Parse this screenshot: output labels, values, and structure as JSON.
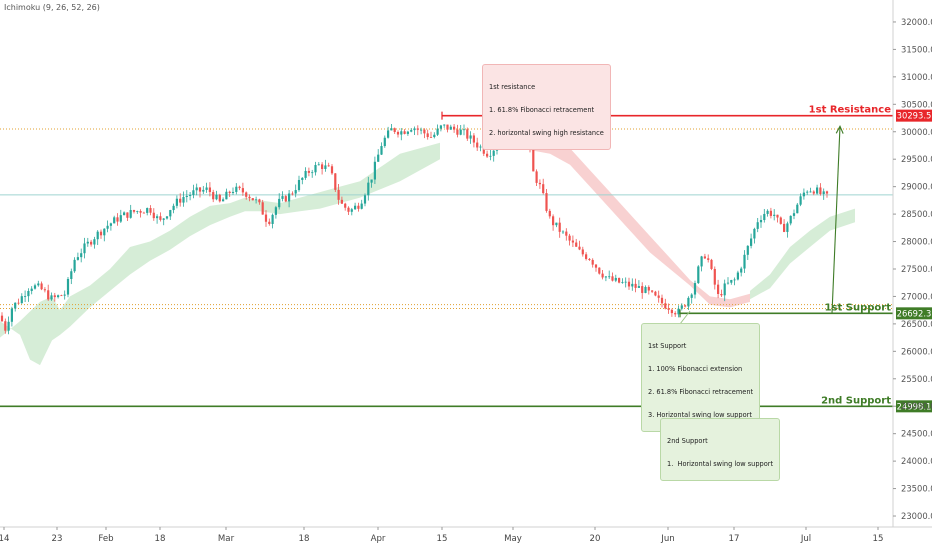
{
  "indicator": "Ichimoku (9, 26, 52, 26)",
  "chart_data": {
    "type": "candlestick",
    "ylim": [
      22800,
      32400
    ],
    "y_ticks": [
      23000,
      23500,
      24000,
      24500,
      25000,
      25500,
      26000,
      26500,
      27000,
      27500,
      28000,
      28500,
      29000,
      29500,
      30000,
      30500,
      31000,
      31500,
      32000
    ],
    "x_ticks": [
      "14",
      "23",
      "Feb",
      "18",
      "Mar",
      "18",
      "Apr",
      "15",
      "May",
      "20",
      "Jun",
      "17",
      "Jul",
      "15"
    ],
    "price_path": [
      [
        0,
        26650
      ],
      [
        5,
        26400
      ],
      [
        12,
        26800
      ],
      [
        20,
        26950
      ],
      [
        30,
        27200
      ],
      [
        40,
        27150
      ],
      [
        52,
        26950
      ],
      [
        65,
        27050
      ],
      [
        75,
        27700
      ],
      [
        85,
        27900
      ],
      [
        95,
        28100
      ],
      [
        108,
        28300
      ],
      [
        120,
        28450
      ],
      [
        135,
        28550
      ],
      [
        150,
        28600
      ],
      [
        160,
        28350
      ],
      [
        170,
        28600
      ],
      [
        182,
        28800
      ],
      [
        195,
        28900
      ],
      [
        208,
        28950
      ],
      [
        220,
        28700
      ],
      [
        232,
        28950
      ],
      [
        245,
        28900
      ],
      [
        258,
        28700
      ],
      [
        268,
        28350
      ],
      [
        278,
        28700
      ],
      [
        290,
        28850
      ],
      [
        300,
        29100
      ],
      [
        310,
        29300
      ],
      [
        320,
        29400
      ],
      [
        330,
        29300
      ],
      [
        340,
        28700
      ],
      [
        350,
        28550
      ],
      [
        360,
        28700
      ],
      [
        372,
        29200
      ],
      [
        382,
        29800
      ],
      [
        392,
        30050
      ],
      [
        402,
        30000
      ],
      [
        412,
        30100
      ],
      [
        422,
        30000
      ],
      [
        432,
        29900
      ],
      [
        442,
        30100
      ],
      [
        452,
        30050
      ],
      [
        462,
        30000
      ],
      [
        475,
        29800
      ],
      [
        488,
        29600
      ],
      [
        500,
        29800
      ],
      [
        512,
        29900
      ],
      [
        522,
        29950
      ],
      [
        528,
        30000
      ],
      [
        532,
        29300
      ],
      [
        540,
        29000
      ],
      [
        550,
        28400
      ],
      [
        560,
        28200
      ],
      [
        570,
        28000
      ],
      [
        580,
        27800
      ],
      [
        590,
        27700
      ],
      [
        600,
        27450
      ],
      [
        610,
        27300
      ],
      [
        620,
        27250
      ],
      [
        630,
        27200
      ],
      [
        640,
        27150
      ],
      [
        650,
        27050
      ],
      [
        660,
        26900
      ],
      [
        670,
        26800
      ],
      [
        678,
        26700
      ],
      [
        686,
        26900
      ],
      [
        694,
        27200
      ],
      [
        700,
        27600
      ],
      [
        706,
        27800
      ],
      [
        712,
        27400
      ],
      [
        718,
        27000
      ],
      [
        726,
        27200
      ],
      [
        735,
        27300
      ],
      [
        742,
        27600
      ],
      [
        750,
        28000
      ],
      [
        758,
        28400
      ],
      [
        766,
        28550
      ],
      [
        774,
        28500
      ],
      [
        782,
        28200
      ],
      [
        790,
        28400
      ],
      [
        798,
        28700
      ],
      [
        806,
        28950
      ],
      [
        814,
        28950
      ],
      [
        822,
        28850
      ],
      [
        828,
        28800
      ]
    ],
    "cloud_green": [
      [
        [
          0,
          26250
        ],
        [
          20,
          26550
        ],
        [
          40,
          26900
        ],
        [
          52,
          27000
        ],
        [
          60,
          26750
        ],
        [
          70,
          27000
        ],
        [
          90,
          27200
        ],
        [
          110,
          27500
        ],
        [
          130,
          27900
        ],
        [
          150,
          28000
        ],
        [
          170,
          28200
        ],
        [
          190,
          28450
        ],
        [
          210,
          28650
        ],
        [
          230,
          28700
        ],
        [
          245,
          28800
        ],
        [
          260,
          28750
        ],
        [
          280,
          28700
        ],
        [
          300,
          28800
        ],
        [
          320,
          28900
        ],
        [
          340,
          29000
        ],
        [
          360,
          29100
        ],
        [
          380,
          29350
        ],
        [
          400,
          29600
        ],
        [
          420,
          29700
        ],
        [
          440,
          29800
        ]
      ],
      [
        [
          0,
          26550
        ],
        [
          20,
          26300
        ],
        [
          30,
          25850
        ],
        [
          40,
          25750
        ],
        [
          52,
          26200
        ],
        [
          60,
          26300
        ],
        [
          70,
          26450
        ],
        [
          90,
          26800
        ],
        [
          110,
          27100
        ],
        [
          130,
          27400
        ],
        [
          150,
          27650
        ],
        [
          170,
          27850
        ],
        [
          190,
          28100
        ],
        [
          210,
          28300
        ],
        [
          230,
          28450
        ],
        [
          245,
          28550
        ],
        [
          260,
          28550
        ],
        [
          280,
          28500
        ],
        [
          300,
          28550
        ],
        [
          320,
          28600
        ],
        [
          340,
          28700
        ],
        [
          360,
          28800
        ],
        [
          380,
          28950
        ],
        [
          400,
          29100
        ],
        [
          420,
          29300
        ],
        [
          440,
          29500
        ]
      ]
    ],
    "cloud_red": [
      [
        [
          520,
          29900
        ],
        [
          550,
          29800
        ],
        [
          570,
          29700
        ],
        [
          590,
          29300
        ],
        [
          610,
          28900
        ],
        [
          630,
          28500
        ],
        [
          650,
          28100
        ],
        [
          670,
          27700
        ],
        [
          690,
          27300
        ],
        [
          710,
          27000
        ],
        [
          730,
          26950
        ],
        [
          750,
          27050
        ]
      ],
      [
        [
          520,
          29700
        ],
        [
          550,
          29600
        ],
        [
          570,
          29400
        ],
        [
          590,
          29000
        ],
        [
          610,
          28600
        ],
        [
          630,
          28200
        ],
        [
          650,
          27800
        ],
        [
          670,
          27500
        ],
        [
          690,
          27200
        ],
        [
          710,
          26850
        ],
        [
          730,
          26800
        ],
        [
          750,
          26900
        ]
      ]
    ],
    "cloud_green_late": [
      [
        [
          750,
          27100
        ],
        [
          770,
          27400
        ],
        [
          790,
          27900
        ],
        [
          810,
          28200
        ],
        [
          830,
          28450
        ],
        [
          855,
          28600
        ]
      ],
      [
        [
          750,
          26950
        ],
        [
          770,
          27150
        ],
        [
          790,
          27600
        ],
        [
          810,
          27900
        ],
        [
          830,
          28200
        ],
        [
          855,
          28350
        ]
      ]
    ],
    "hlines": [
      {
        "price": 30293.5,
        "label": "1st Resistance",
        "price_label": "30293.5",
        "color": "#e8262a",
        "x_start": 442
      },
      {
        "price": 26692.3,
        "label": "1st Support",
        "price_label": "26692.3",
        "color": "#3f7c27",
        "x_start": 680
      },
      {
        "price": 24998.1,
        "label": "2nd Support",
        "price_label": "24998.1",
        "color": "#3f7c27",
        "x_start": 0
      }
    ],
    "dotted_lines": [
      30050,
      26850,
      26780
    ],
    "teal_line": 28850,
    "arrow": {
      "from": [
        832,
        26692.3
      ],
      "to": [
        840,
        30100
      ]
    }
  },
  "callouts": {
    "resistance": {
      "lines": [
        "1st resistance",
        "1. 61.8% Fibonacci retracement",
        "2. horizontal swing high resistance"
      ]
    },
    "support1": {
      "lines": [
        "1st Support",
        "1. 100% Fibonacci extension",
        "2. 61.8% Fibonacci retracement",
        "3. Horizontal swing low support"
      ]
    },
    "support2": {
      "lines": [
        "2nd Support",
        "1.  Horizontal swing low support"
      ]
    }
  },
  "colors": {
    "up": "#26a69a",
    "down": "#ef5350",
    "cloud_green": "#a5d6a7",
    "cloud_red": "#ef9a9a"
  }
}
